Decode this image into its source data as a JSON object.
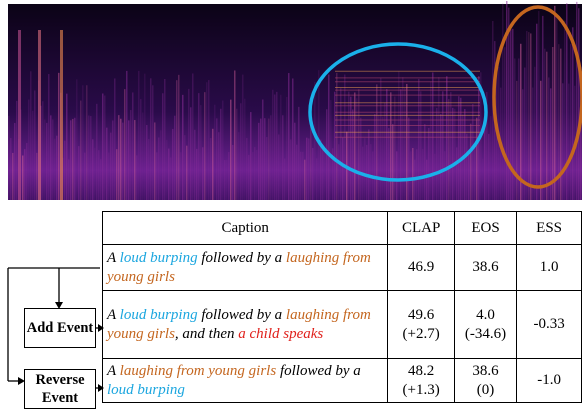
{
  "table": {
    "header": [
      "Caption",
      "CLAP",
      "EOS",
      "ESS"
    ],
    "rows": [
      {
        "caption": [
          {
            "text": "A ",
            "color": "#000000"
          },
          {
            "text": "loud burping",
            "color": "#1ba6df"
          },
          {
            "text": " followed by a ",
            "color": "#000000"
          },
          {
            "text": "laughing  from young girls",
            "color": "#c4661f"
          }
        ],
        "clap": [
          "46.9"
        ],
        "eos": [
          "38.6"
        ],
        "ess": [
          "1.0"
        ]
      },
      {
        "caption": [
          {
            "text": "A ",
            "color": "#000000"
          },
          {
            "text": "loud burping",
            "color": "#1ba6df"
          },
          {
            "text": " followed by a ",
            "color": "#000000"
          },
          {
            "text": "laughing from young girls",
            "color": "#c4661f"
          },
          {
            "text": ", and then ",
            "color": "#000000"
          },
          {
            "text": "a child speaks",
            "color": "#e0201b"
          }
        ],
        "clap": [
          "49.6",
          "(+2.7)"
        ],
        "eos": [
          "4.0",
          "(-34.6)"
        ],
        "ess": [
          "-0.33"
        ]
      },
      {
        "caption": [
          {
            "text": "A ",
            "color": "#000000"
          },
          {
            "text": "laughing from young girls",
            "color": "#c4661f"
          },
          {
            "text": " followed by a ",
            "color": "#000000"
          },
          {
            "text": "loud burping",
            "color": "#1ba6df"
          }
        ],
        "clap": [
          "48.2",
          "(+1.3)"
        ],
        "eos": [
          "38.6",
          "(0)"
        ],
        "ess": [
          "-1.0"
        ]
      }
    ]
  },
  "operations": [
    "Add Event",
    "Reverse Event"
  ]
}
